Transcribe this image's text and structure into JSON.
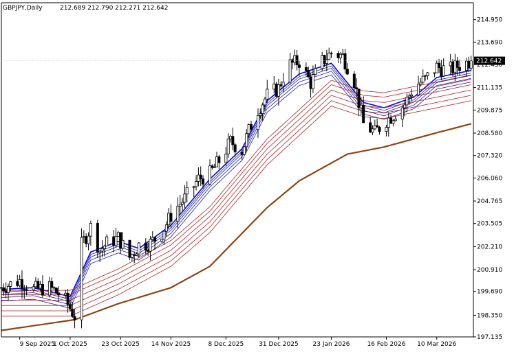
{
  "header": {
    "symbol": "GBPJPY,Daily",
    "ohlc": "212.689 212.790 212.271 212.642"
  },
  "price_marker": {
    "label": "212.642",
    "value": 212.642
  },
  "chart_data": {
    "type": "candlestick",
    "title": "GBPJPY,Daily",
    "yticks": [
      197.135,
      198.35,
      199.69,
      200.91,
      202.21,
      203.505,
      204.765,
      206.06,
      207.32,
      208.58,
      209.875,
      211.135,
      212.43,
      213.69,
      214.95
    ],
    "ytick_labels": [
      "197.135",
      "198.350",
      "199.690",
      "200.910",
      "202.210",
      "203.505",
      "204.765",
      "206.060",
      "207.320",
      "208.580",
      "209.875",
      "211.135",
      "212.430",
      "213.690",
      "214.950"
    ],
    "ylim": [
      197.135,
      215.9
    ],
    "xtick_labels": [
      "9 Sep 2025",
      "1 Oct 2025",
      "23 Oct 2025",
      "14 Nov 2025",
      "8 Dec 2025",
      "31 Dec 2025",
      "23 Jan 2026",
      "16 Feb 2026",
      "10 Mar 2026"
    ],
    "xlim": [
      "2025-09-01",
      "2026-03-26"
    ],
    "grid": false,
    "current_price": 212.642,
    "close_path": [
      [
        "2025-09-01",
        199.9
      ],
      [
        "2025-09-09",
        200.3
      ],
      [
        "2025-09-15",
        199.8
      ],
      [
        "2025-09-22",
        199.9
      ],
      [
        "2025-09-28",
        199.4
      ],
      [
        "2025-10-03",
        198.3
      ],
      [
        "2025-10-06",
        202.3
      ],
      [
        "2025-10-10",
        203.3
      ],
      [
        "2025-10-14",
        202.0
      ],
      [
        "2025-10-17",
        202.4
      ],
      [
        "2025-10-22",
        202.7
      ],
      [
        "2025-10-27",
        201.6
      ],
      [
        "2025-10-31",
        202.3
      ],
      [
        "2025-11-05",
        202.4
      ],
      [
        "2025-11-10",
        203.0
      ],
      [
        "2025-11-15",
        204.2
      ],
      [
        "2025-11-20",
        204.9
      ],
      [
        "2025-11-26",
        206.0
      ],
      [
        "2025-12-01",
        206.3
      ],
      [
        "2025-12-06",
        207.2
      ],
      [
        "2025-12-10",
        208.1
      ],
      [
        "2025-12-15",
        207.6
      ],
      [
        "2025-12-18",
        208.7
      ],
      [
        "2025-12-21",
        209.7
      ],
      [
        "2025-12-26",
        210.7
      ],
      [
        "2025-12-31",
        211.1
      ],
      [
        "2026-01-04",
        212.4
      ],
      [
        "2026-01-09",
        212.6
      ],
      [
        "2026-01-14",
        211.4
      ],
      [
        "2026-01-19",
        212.6
      ],
      [
        "2026-01-23",
        213.1
      ],
      [
        "2026-01-28",
        212.9
      ],
      [
        "2026-02-02",
        211.5
      ],
      [
        "2026-02-06",
        209.1
      ],
      [
        "2026-02-11",
        208.6
      ],
      [
        "2026-02-15",
        209.2
      ],
      [
        "2026-02-19",
        209.6
      ],
      [
        "2026-02-24",
        210.2
      ],
      [
        "2026-02-28",
        211.2
      ],
      [
        "2026-03-05",
        211.6
      ],
      [
        "2026-03-10",
        212.3
      ],
      [
        "2026-03-15",
        212.1
      ],
      [
        "2026-03-20",
        212.4
      ],
      [
        "2026-03-25",
        212.64
      ]
    ],
    "series": [
      {
        "color": "#0000ff",
        "values": [
          [
            "2025-09-01",
            199.7
          ],
          [
            "2025-09-15",
            199.8
          ],
          [
            "2025-10-01",
            199.3
          ],
          [
            "2025-10-10",
            201.8
          ],
          [
            "2025-10-22",
            202.4
          ],
          [
            "2025-10-31",
            202.0
          ],
          [
            "2025-11-14",
            203.3
          ],
          [
            "2025-12-01",
            205.9
          ],
          [
            "2025-12-15",
            207.6
          ],
          [
            "2025-12-26",
            210.3
          ],
          [
            "2026-01-09",
            211.8
          ],
          [
            "2026-01-23",
            212.4
          ],
          [
            "2026-02-06",
            210.2
          ],
          [
            "2026-02-15",
            209.9
          ],
          [
            "2026-02-28",
            210.5
          ],
          [
            "2026-03-10",
            211.6
          ],
          [
            "2026-03-25",
            212.0
          ]
        ]
      },
      {
        "color": "#b22222",
        "values": [
          [
            "2025-09-01",
            199.2
          ],
          [
            "2025-10-01",
            199.2
          ],
          [
            "2025-10-22",
            200.4
          ],
          [
            "2025-11-14",
            202.0
          ],
          [
            "2025-12-01",
            203.9
          ],
          [
            "2025-12-26",
            207.7
          ],
          [
            "2026-01-23",
            211.0
          ],
          [
            "2026-02-06",
            210.4
          ],
          [
            "2026-02-15",
            210.3
          ],
          [
            "2026-03-10",
            210.9
          ],
          [
            "2026-03-25",
            211.3
          ]
        ]
      },
      {
        "color": "#8b4513",
        "values": [
          [
            "2025-09-01",
            197.5
          ],
          [
            "2025-10-03",
            198.1
          ],
          [
            "2025-10-22",
            199.0
          ],
          [
            "2025-11-14",
            199.9
          ],
          [
            "2025-12-01",
            201.1
          ],
          [
            "2025-12-26",
            204.4
          ],
          [
            "2026-01-09",
            205.9
          ],
          [
            "2026-01-30",
            207.4
          ],
          [
            "2026-02-15",
            207.8
          ],
          [
            "2026-03-10",
            208.6
          ],
          [
            "2026-03-25",
            209.1
          ]
        ]
      }
    ]
  }
}
